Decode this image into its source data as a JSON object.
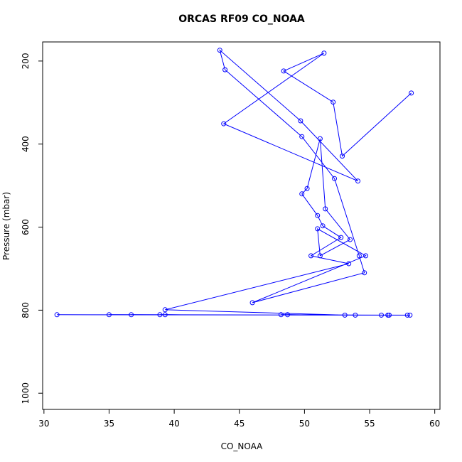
{
  "chart_data": {
    "type": "line",
    "title": "ORCAS RF09 CO_NOAA",
    "x_label": "CO_NOAA",
    "y_label": "Pressure (mbar)",
    "xlim": [
      29.9,
      60.4
    ],
    "ylim": [
      1039,
      154
    ],
    "xticks": [
      30,
      35,
      40,
      45,
      50,
      55,
      60
    ],
    "yticks": [
      200,
      400,
      600,
      800,
      1000
    ],
    "color": "#0000ff",
    "series": [
      {
        "name": "CO_NOAA",
        "color": "#0000ff",
        "x": [
          31.0,
          58.1,
          35.0,
          56.5,
          36.7,
          57.9,
          38.9,
          56.4,
          39.3,
          55.9,
          48.2,
          53.9,
          48.7,
          53.1,
          39.3,
          53.4,
          50.5,
          52.8,
          51.4,
          51.0,
          49.8,
          50.2,
          51.2,
          51.6,
          53.5,
          51.2,
          51.0,
          54.7,
          46.0,
          54.6,
          54.2,
          52.3,
          49.8,
          43.9,
          43.5,
          49.7,
          54.1,
          43.8,
          51.5,
          48.4,
          52.2,
          52.9,
          58.2
        ],
        "values": [
          811,
          812,
          811,
          812,
          811,
          812,
          811,
          812,
          811,
          812,
          811,
          812,
          811,
          812,
          799,
          688,
          669,
          625,
          597,
          572,
          520,
          507,
          387,
          556,
          630,
          669,
          604,
          669,
          782,
          710,
          669,
          483,
          382,
          221,
          174,
          344,
          489,
          351,
          181,
          224,
          299,
          429,
          277
        ]
      }
    ]
  }
}
